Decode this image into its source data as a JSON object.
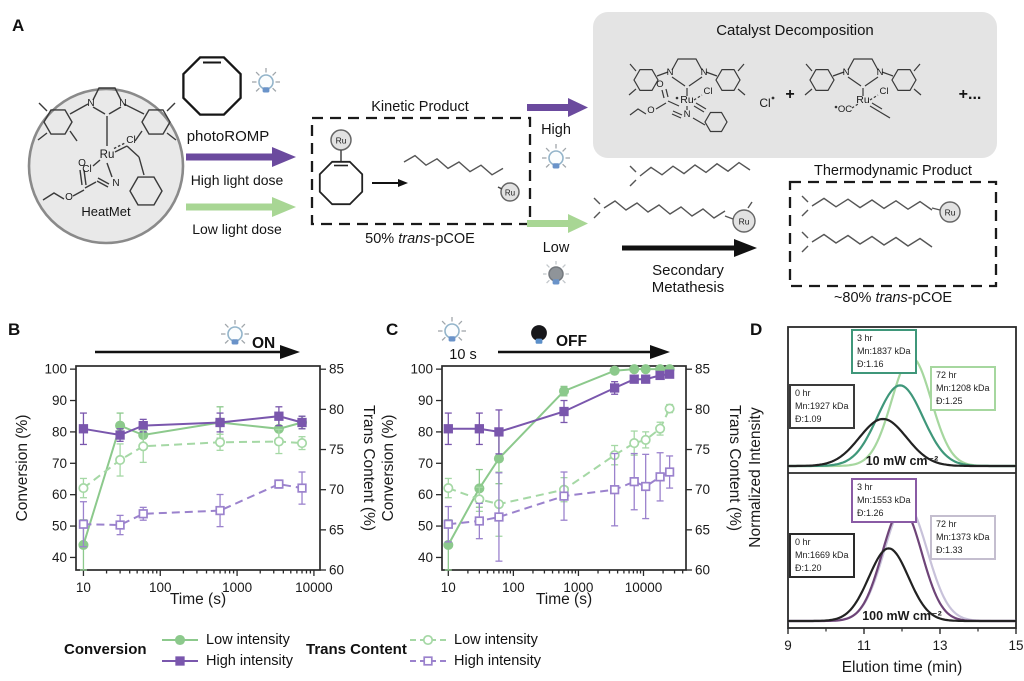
{
  "panel_labels": {
    "a": "A",
    "b": "B",
    "c": "C",
    "d": "D"
  },
  "panelA": {
    "heatmet_label": "HeatMet",
    "photoromp": "photoROMP",
    "high_light_dose": "High light dose",
    "low_light_dose": "Low light dose",
    "kinetic_product": "Kinetic Product",
    "kinetic_yield": {
      "prefix": "50% ",
      "italic": "trans",
      "suffix": "-pCOE"
    },
    "catalyst_decomposition": "Catalyst Decomposition",
    "plus": "+",
    "plus_more": "+...",
    "high": "High",
    "low": "Low",
    "secondary_line1": "Secondary",
    "secondary_line2": "Metathesis",
    "thermodynamic_product": "Thermodynamic Product",
    "thermo_yield": {
      "prefix": "~80% ",
      "italic": "trans",
      "suffix": "-pCOE"
    },
    "atom_labels": {
      "ru": "Ru",
      "cl": "Cl",
      "n": "N",
      "o": "O",
      "oc": "OC"
    }
  },
  "chart_data": [
    {
      "id": "B",
      "type": "line",
      "x_scale": "log",
      "light_label": "ON",
      "xlabel": "Time (s)",
      "ylabel_left": "Conversion (%)",
      "ylabel_right": "Trans Content (%)",
      "xlim": [
        8,
        12000
      ],
      "ylim_left": [
        36,
        101
      ],
      "ylim_right": [
        60,
        85.4
      ],
      "xticks": [
        10,
        100,
        1000,
        10000
      ],
      "yticks_left": [
        40,
        50,
        60,
        70,
        80,
        90,
        100
      ],
      "yticks_right": [
        60,
        65,
        70,
        75,
        80,
        85
      ],
      "x": [
        10,
        30,
        60,
        600,
        3500,
        7000
      ],
      "series": [
        {
          "name": "Conversion Low intensity",
          "axis": "left",
          "style": "solid",
          "marker": "circle-filled",
          "color": "#8cc98c",
          "values": [
            44,
            82,
            79,
            83,
            81,
            83
          ],
          "err": [
            8,
            4,
            4,
            5,
            4,
            2
          ]
        },
        {
          "name": "Conversion High intensity",
          "axis": "left",
          "style": "solid",
          "marker": "square-filled",
          "color": "#7a57ad",
          "values": [
            81,
            79,
            82,
            83,
            85,
            83
          ],
          "err": [
            5,
            2,
            2,
            3,
            3,
            2
          ]
        },
        {
          "name": "Trans Content Low intensity",
          "axis": "right",
          "style": "dashed",
          "marker": "circle-open",
          "color": "#a5d8a5",
          "values": [
            70.2,
            73.7,
            75.4,
            75.9,
            76.0,
            75.8
          ],
          "err": [
            1.2,
            2.0,
            2.0,
            1.0,
            1.5,
            0.8
          ]
        },
        {
          "name": "Trans Content High intensity",
          "axis": "right",
          "style": "dashed",
          "marker": "square-open",
          "color": "#9b82cd",
          "values": [
            65.7,
            65.6,
            67.0,
            67.4,
            70.7,
            70.2
          ],
          "err": [
            2.8,
            1.2,
            0.8,
            2.0,
            0.5,
            2.0
          ]
        }
      ]
    },
    {
      "id": "C",
      "type": "line",
      "x_scale": "log",
      "pre_label": "10 s",
      "light_label": "OFF",
      "xlabel": "Time (s)",
      "ylabel_left": "Conversion (%)",
      "ylabel_right": "Trans Content (%)",
      "xlim": [
        8,
        45000
      ],
      "ylim_left": [
        36,
        101
      ],
      "ylim_right": [
        60,
        85.4
      ],
      "xticks": [
        10,
        100,
        1000,
        10000
      ],
      "yticks_left": [
        40,
        50,
        60,
        70,
        80,
        90,
        100
      ],
      "yticks_right": [
        60,
        65,
        70,
        75,
        80,
        85
      ],
      "x": [
        10,
        30,
        60,
        600,
        3600,
        7200,
        10800,
        18000,
        25200
      ],
      "series": [
        {
          "name": "Conversion Low intensity",
          "axis": "left",
          "style": "solid",
          "marker": "circle-filled",
          "color": "#8cc98c",
          "values": [
            44,
            62,
            71.5,
            93,
            99.5,
            100,
            100,
            100,
            100
          ],
          "err": [
            8,
            6,
            8,
            1.5,
            1,
            0.5,
            0.5,
            0.5,
            0.5
          ]
        },
        {
          "name": "Conversion High intensity",
          "axis": "left",
          "style": "solid",
          "marker": "square-filled",
          "color": "#7a57ad",
          "values": [
            81,
            81,
            80,
            86.5,
            94,
            96.8,
            96.8,
            98,
            98.4
          ],
          "err": [
            5,
            5,
            7,
            3.5,
            2,
            1,
            1,
            1,
            1
          ]
        },
        {
          "name": "Trans Content Low intensity",
          "axis": "right",
          "style": "dashed",
          "marker": "circle-open",
          "color": "#a5d8a5",
          "values": [
            70.2,
            68.8,
            68.2,
            70.0,
            74.3,
            75.8,
            76.2,
            77.6,
            80.1
          ],
          "err": [
            1.2,
            1.5,
            4.0,
            1.5,
            1.2,
            1.5,
            1.0,
            0.8,
            0.5
          ]
        },
        {
          "name": "Trans Content High intensity",
          "axis": "right",
          "style": "dashed",
          "marker": "square-open",
          "color": "#9b82cd",
          "values": [
            65.7,
            66.1,
            66.6,
            69.2,
            70.0,
            71.0,
            70.4,
            71.6,
            72.2
          ],
          "err": [
            2.2,
            2.2,
            5.5,
            3.0,
            4.5,
            3.5,
            4.0,
            3.0,
            2.0
          ]
        }
      ]
    },
    {
      "id": "D",
      "type": "line",
      "xlabel": "Elution time (min)",
      "ylabel": "Normalized Intensity",
      "xlim": [
        9,
        15
      ],
      "xticks": [
        9,
        11,
        13,
        15
      ],
      "xticks_minor": [
        10,
        12,
        14
      ],
      "subplots": [
        {
          "label": "10 mW cm⁻²",
          "curves": [
            {
              "name": "0 hr",
              "color": "#222222",
              "peak": 11.5,
              "height": 0.42,
              "sigma": 0.62
            },
            {
              "name": "3 hr",
              "color": "#3f977a",
              "peak": 11.95,
              "height": 0.72,
              "sigma": 0.6
            },
            {
              "name": "72 hr",
              "color": "#a6d79f",
              "peak": 12.25,
              "height": 0.97,
              "sigma": 0.52
            }
          ],
          "boxes": [
            {
              "lines": [
                "0 hr",
                "Mn:1927 kDa",
                "Đ:1.09"
              ],
              "color": "#3a3a3a"
            },
            {
              "lines": [
                "3 hr",
                "Mn:1837 kDa",
                "Đ:1.16"
              ],
              "color": "#3f977a"
            },
            {
              "lines": [
                "72 hr",
                "Mn:1208 kDa",
                "Đ:1.25"
              ],
              "color": "#a6d79f"
            }
          ]
        },
        {
          "label": "100 mW cm⁻²",
          "curves": [
            {
              "name": "0 hr",
              "color": "#222222",
              "peak": 11.65,
              "height": 0.6,
              "sigma": 0.52
            },
            {
              "name": "3 hr",
              "color": "#6e4478",
              "peak": 12.0,
              "height": 0.93,
              "sigma": 0.52
            },
            {
              "name": "72 hr",
              "color": "#c8c2da",
              "peak": 12.1,
              "height": 0.97,
              "sigma": 0.56
            }
          ],
          "boxes": [
            {
              "lines": [
                "0 hr",
                "Mn:1669 kDa",
                "Đ:1.20"
              ],
              "color": "#2a2a2a"
            },
            {
              "lines": [
                "3 hr",
                "Mn:1553 kDa",
                "Đ:1.26"
              ],
              "color": "#8a5ba5"
            },
            {
              "lines": [
                "72 hr",
                "Mn:1373 kDa",
                "Đ:1.33"
              ],
              "color": "#c4becf"
            }
          ]
        }
      ]
    }
  ],
  "legend": {
    "groups": [
      {
        "title": "Conversion",
        "items": [
          {
            "label": "Low intensity",
            "color": "#8cc98c",
            "style": "solid",
            "marker": "circle-filled"
          },
          {
            "label": "High intensity",
            "color": "#7a57ad",
            "style": "solid",
            "marker": "square-filled"
          }
        ]
      },
      {
        "title": "Trans Content",
        "items": [
          {
            "label": "Low intensity",
            "color": "#a5d8a5",
            "style": "dashed",
            "marker": "circle-open"
          },
          {
            "label": "High intensity",
            "color": "#9b82cd",
            "style": "dashed",
            "marker": "square-open"
          }
        ]
      }
    ]
  },
  "colors": {
    "purple_arrow": "#6b4a9e",
    "green_arrow": "#a8d694",
    "decomposition_box_bg": "#e4e4e4",
    "catalyst_circle_bg": "#e9e9e9",
    "bulb_base_blue": "#6a93c9",
    "axis_stroke": "#2a2a2a"
  }
}
